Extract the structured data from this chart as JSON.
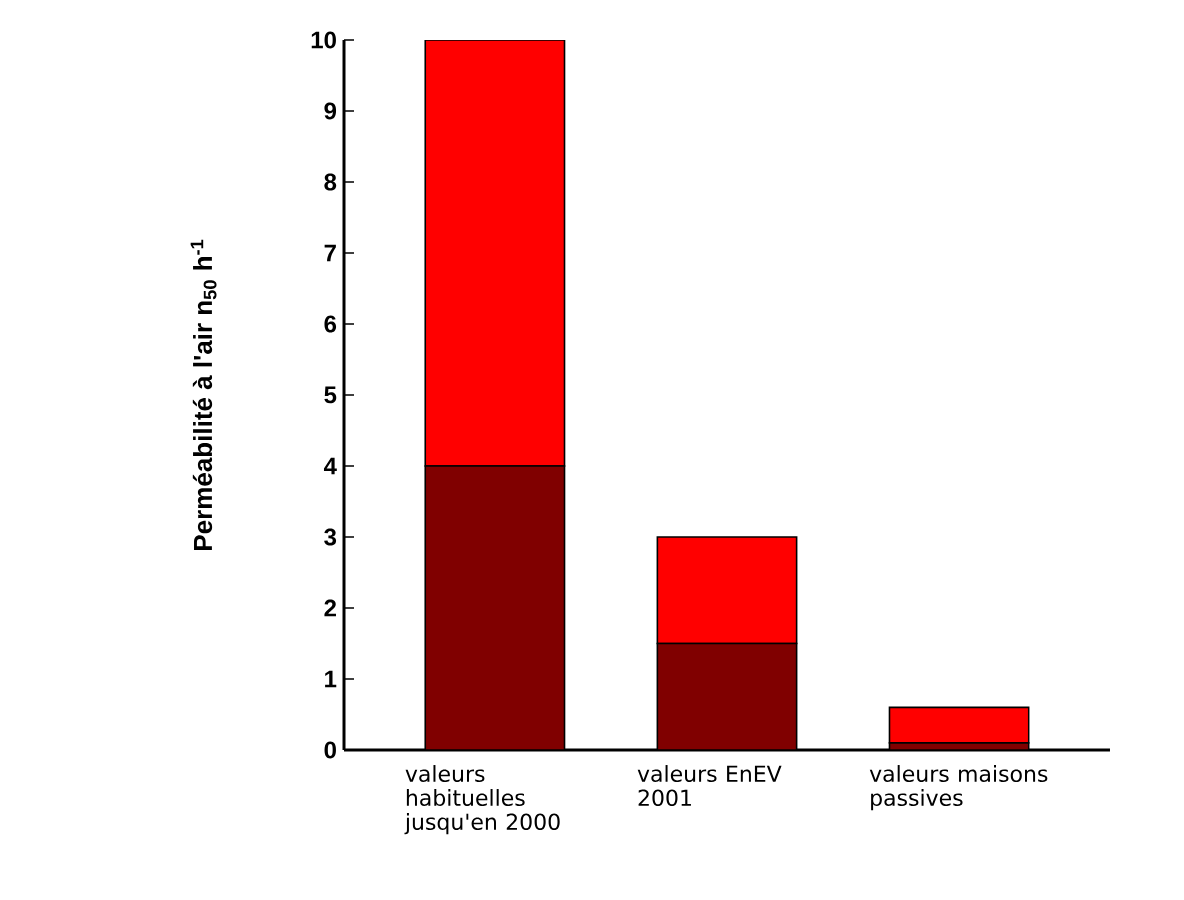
{
  "chart_data": {
    "type": "bar",
    "stacked": true,
    "ylabel": "Perméabilité à l'air  n$_{50}$  h$^{-1}$",
    "categories": [
      "valeurs habituelles jusqu'en 2000",
      "valeurs EnEV 2001",
      "valeurs maisons passives"
    ],
    "series": [
      {
        "color": "#800000",
        "values": [
          4,
          1.5,
          0.1
        ]
      },
      {
        "color": "#ff0000",
        "values": [
          6,
          1.5,
          0.5
        ]
      }
    ],
    "ylim": [
      0,
      10
    ],
    "yticks": [
      0,
      1,
      2,
      3,
      4,
      5,
      6,
      7,
      8,
      9,
      10
    ],
    "grid": false
  }
}
